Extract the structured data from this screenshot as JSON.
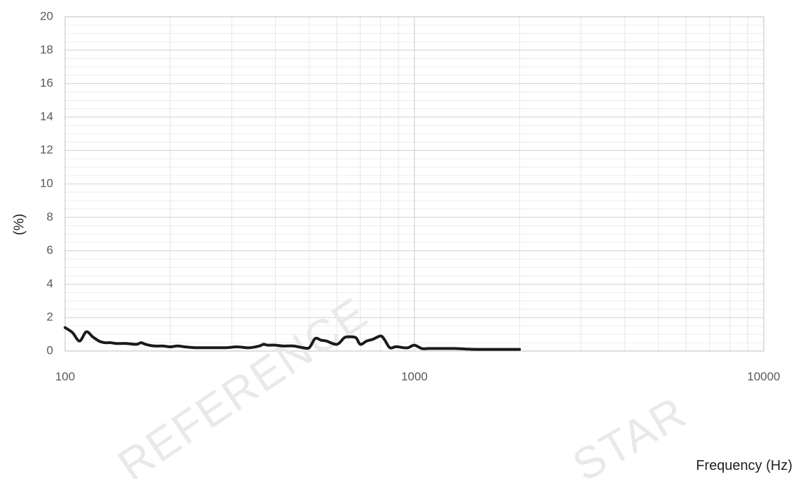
{
  "chart_data": {
    "type": "line",
    "title": "",
    "xlabel": "Frequency (Hz)",
    "ylabel": "(%)",
    "xscale": "log",
    "xlim": [
      100,
      10000
    ],
    "ylim": [
      0,
      20
    ],
    "x_ticks": [
      "100",
      "1000",
      "10000"
    ],
    "y_ticks": [
      "0",
      "2",
      "4",
      "6",
      "8",
      "10",
      "12",
      "14",
      "16",
      "18",
      "20"
    ],
    "grid": true,
    "legend": "none",
    "line_color": "#1a1a1a",
    "series": [
      {
        "x": [
          100,
          105,
          110,
          115,
          120,
          125,
          130,
          135,
          140,
          150,
          160,
          165,
          170,
          180,
          190,
          200,
          210,
          220,
          235,
          250,
          270,
          290,
          310,
          330,
          340,
          360,
          370,
          380,
          400,
          420,
          450,
          480,
          500,
          520,
          540,
          560,
          600,
          630,
          650,
          680,
          700,
          730,
          760,
          800,
          820,
          850,
          880,
          900,
          930,
          960,
          1000,
          1050,
          1100,
          1200,
          1300,
          1400,
          1500,
          1700,
          2000
        ],
        "y": [
          1.4,
          1.1,
          0.6,
          1.15,
          0.85,
          0.6,
          0.5,
          0.5,
          0.45,
          0.45,
          0.4,
          0.5,
          0.4,
          0.3,
          0.3,
          0.25,
          0.3,
          0.25,
          0.2,
          0.2,
          0.2,
          0.2,
          0.25,
          0.2,
          0.2,
          0.3,
          0.4,
          0.35,
          0.35,
          0.3,
          0.3,
          0.2,
          0.2,
          0.75,
          0.65,
          0.6,
          0.4,
          0.8,
          0.85,
          0.8,
          0.4,
          0.6,
          0.7,
          0.9,
          0.7,
          0.2,
          0.25,
          0.25,
          0.2,
          0.2,
          0.35,
          0.15,
          0.15,
          0.15,
          0.15,
          0.12,
          0.1,
          0.1,
          0.1
        ]
      }
    ]
  },
  "watermark": {
    "text_1": "REFERENCE",
    "text_2": "STAR"
  }
}
